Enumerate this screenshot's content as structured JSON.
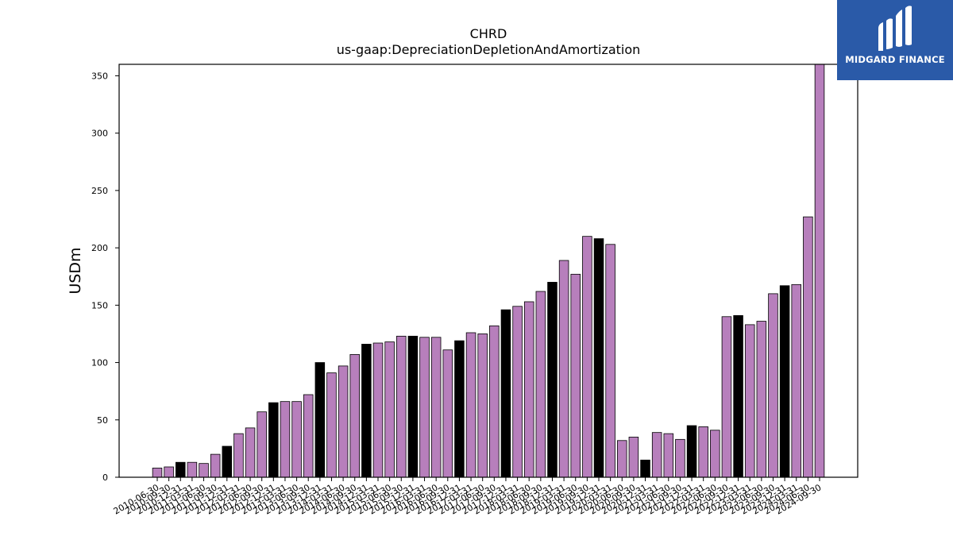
{
  "brand": {
    "name": "MIDGARD FINANCE",
    "bg_color": "#2a5aa8"
  },
  "chart_data": {
    "type": "bar",
    "title": "CHRD",
    "subtitle": "us-gaap:DepreciationDepletionAndAmortization",
    "xlabel": "",
    "ylabel": "USDm",
    "ylim": [
      0,
      360
    ],
    "yticks": [
      0,
      50,
      100,
      150,
      200,
      250,
      300,
      350
    ],
    "grid": false,
    "colors": {
      "quarter": "#b77fbc",
      "fiscal_year": "#000000",
      "edge": "#000000"
    },
    "categories": [
      "2010-06-30",
      "2010-09-30",
      "2010-12-31",
      "2011-03-31",
      "2011-06-30",
      "2011-09-30",
      "2011-12-31",
      "2012-03-31",
      "2012-06-30",
      "2012-09-30",
      "2012-12-31",
      "2013-03-31",
      "2013-06-30",
      "2013-09-30",
      "2013-12-31",
      "2014-03-31",
      "2014-06-30",
      "2014-09-30",
      "2014-12-31",
      "2015-03-31",
      "2015-06-30",
      "2015-09-30",
      "2015-12-31",
      "2016-03-31",
      "2016-06-30",
      "2016-09-30",
      "2016-12-31",
      "2017-03-31",
      "2017-06-30",
      "2017-09-30",
      "2017-12-31",
      "2018-03-31",
      "2018-06-30",
      "2018-09-30",
      "2018-12-31",
      "2019-03-31",
      "2019-06-30",
      "2019-09-30",
      "2019-12-31",
      "2020-03-31",
      "2020-06-30",
      "2020-09-30",
      "2020-12-31",
      "2021-03-31",
      "2021-06-30",
      "2021-09-30",
      "2021-12-31",
      "2022-03-31",
      "2022-06-30",
      "2022-09-30",
      "2022-12-31",
      "2023-03-31",
      "2023-06-30",
      "2023-09-30",
      "2023-12-31",
      "2024-03-31",
      "2024-06-30",
      "2024-09-30"
    ],
    "values": [
      8,
      9,
      13,
      13,
      12,
      20,
      27,
      38,
      43,
      57,
      65,
      66,
      66,
      72,
      100,
      91,
      97,
      107,
      116,
      117,
      118,
      123,
      123,
      122,
      122,
      111,
      119,
      126,
      125,
      132,
      146,
      149,
      153,
      162,
      170,
      189,
      177,
      210,
      208,
      203,
      32,
      35,
      15,
      39,
      38,
      33,
      45,
      44,
      41,
      140,
      141,
      133,
      136,
      160,
      167,
      168,
      227,
      360
    ],
    "highlighted": [
      false,
      false,
      true,
      false,
      false,
      false,
      true,
      false,
      false,
      false,
      true,
      false,
      false,
      false,
      true,
      false,
      false,
      false,
      true,
      false,
      false,
      false,
      true,
      false,
      false,
      false,
      true,
      false,
      false,
      false,
      true,
      false,
      false,
      false,
      true,
      false,
      false,
      false,
      true,
      false,
      false,
      false,
      true,
      false,
      false,
      false,
      true,
      false,
      false,
      false,
      true,
      false,
      false,
      false,
      true,
      false,
      false,
      false
    ]
  }
}
